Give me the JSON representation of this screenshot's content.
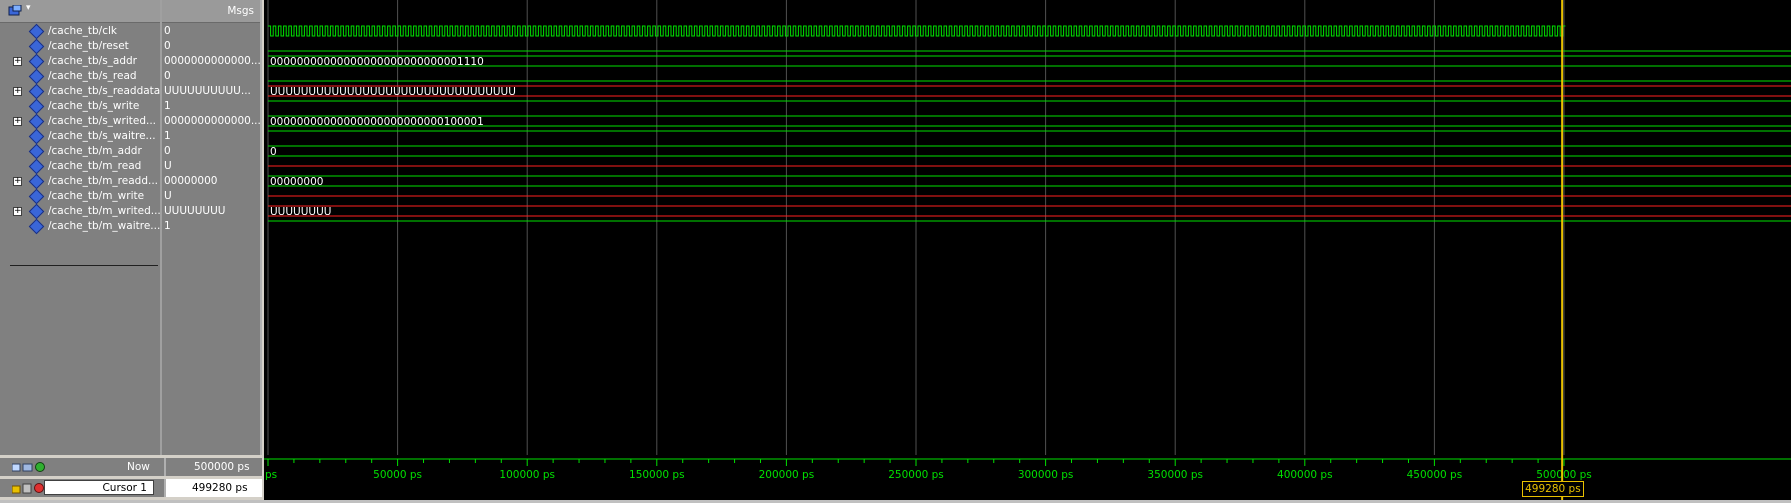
{
  "header": {
    "msgs_label": "Msgs"
  },
  "signals": [
    {
      "name": "/cache_tb/clk",
      "value": "0",
      "expandable": false,
      "kind": "clock"
    },
    {
      "name": "/cache_tb/reset",
      "value": "0",
      "expandable": false,
      "kind": "bit",
      "level": "low"
    },
    {
      "name": "/cache_tb/s_addr",
      "value": "0000000000000...",
      "expandable": true,
      "kind": "bus",
      "text": "00000000000000000000000000001110",
      "color": "#ffffff"
    },
    {
      "name": "/cache_tb/s_read",
      "value": "0",
      "expandable": false,
      "kind": "bit",
      "level": "low"
    },
    {
      "name": "/cache_tb/s_readdata",
      "value": "UUUUUUUUUU...",
      "expandable": true,
      "kind": "bus",
      "text": "UUUUUUUUUUUUUUUUUUUUUUUUUUUUUUUU",
      "color": "#ff2020"
    },
    {
      "name": "/cache_tb/s_write",
      "value": "1",
      "expandable": false,
      "kind": "bit",
      "level": "high"
    },
    {
      "name": "/cache_tb/s_writed...",
      "value": "0000000000000...",
      "expandable": true,
      "kind": "bus",
      "text": "00000000000000000000000000100001",
      "color": "#ffffff"
    },
    {
      "name": "/cache_tb/s_waitre...",
      "value": "1",
      "expandable": false,
      "kind": "bit",
      "level": "high"
    },
    {
      "name": "/cache_tb/m_addr",
      "value": "0",
      "expandable": false,
      "kind": "bus",
      "text": "0",
      "color": "#ffffff"
    },
    {
      "name": "/cache_tb/m_read",
      "value": "U",
      "expandable": false,
      "kind": "bit",
      "level": "undefined"
    },
    {
      "name": "/cache_tb/m_readd...",
      "value": "00000000",
      "expandable": true,
      "kind": "bus",
      "text": "00000000",
      "color": "#ffffff"
    },
    {
      "name": "/cache_tb/m_write",
      "value": "U",
      "expandable": false,
      "kind": "bit",
      "level": "undefined"
    },
    {
      "name": "/cache_tb/m_writed...",
      "value": "UUUUUUUU",
      "expandable": true,
      "kind": "bus",
      "text": "UUUUUUUU",
      "color": "#ff2020"
    },
    {
      "name": "/cache_tb/m_waitre...",
      "value": "1",
      "expandable": false,
      "kind": "bit",
      "level": "high"
    }
  ],
  "timeline": {
    "start_ps": 0,
    "end_ps": 500000,
    "major_tick_ps": 50000,
    "unit": "ps",
    "tick_labels": [
      "ps",
      "50000 ps",
      "100000 ps",
      "150000 ps",
      "200000 ps",
      "250000 ps",
      "300000 ps",
      "350000 ps",
      "400000 ps",
      "450000 ps",
      "500000 ps"
    ]
  },
  "now": {
    "label": "Now",
    "value": "500000 ps"
  },
  "cursor": {
    "label": "Cursor 1",
    "value": "499280 ps",
    "time_ps": 499280,
    "badge": "499280 ps"
  },
  "colors": {
    "wave_green": "#00e000",
    "wave_red": "#ff2020",
    "grid": "#505050",
    "cursor": "#e8c000",
    "signal_icon": "#3a66d8"
  },
  "icons": {
    "header": "wave-window-icon",
    "signal": "signal-diamond-icon",
    "expand": "expand-plus-icon"
  }
}
